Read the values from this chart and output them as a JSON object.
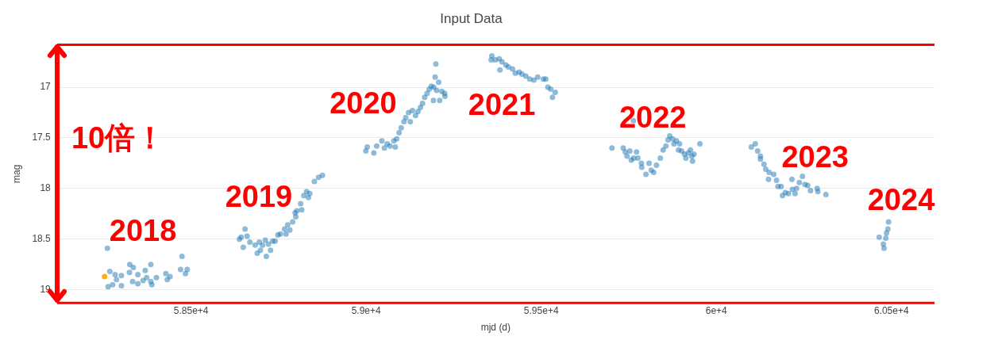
{
  "chart_data": {
    "type": "scatter",
    "title": "Input Data",
    "xlabel": "mjd (d)",
    "ylabel": "mag",
    "xlim": [
      58117,
      60623
    ],
    "xticks": [
      {
        "value": 58500,
        "label": "5.85e+4"
      },
      {
        "value": 59000,
        "label": "5.9e+4"
      },
      {
        "value": 59500,
        "label": "5.95e+4"
      },
      {
        "value": 60000,
        "label": "6e+4"
      },
      {
        "value": 60500,
        "label": "6.05e+4"
      }
    ],
    "ylim": [
      19.13,
      16.58
    ],
    "yticks": [
      17,
      17.5,
      18,
      18.5,
      19
    ],
    "grid": "y",
    "legend": false,
    "marker": "circle",
    "annotations": [
      "10倍！",
      "2018",
      "2019",
      "2020",
      "2021",
      "2022",
      "2023",
      "2024"
    ],
    "series": [
      {
        "color": "#1f77b4",
        "x": [
          58261,
          58268,
          58263,
          58276,
          58283,
          58287,
          58301,
          58301,
          58325,
          58335,
          58324,
          58333,
          58348,
          58348,
          58363,
          58369,
          58373,
          58385,
          58385,
          58388,
          58401,
          58428,
          58432,
          58440,
          58474,
          58470,
          58484,
          58489,
          58638,
          58643,
          58649,
          58654,
          58660,
          58668,
          58683,
          58689,
          58695,
          58698,
          58704,
          58712,
          58715,
          58721,
          58727,
          58733,
          58740,
          58748,
          58755,
          58767,
          58771,
          58776,
          58782,
          58790,
          58797,
          58799,
          58802,
          58813,
          58816,
          58822,
          58830,
          58835,
          58839,
          58852,
          58864,
          58875,
          58999,
          59003,
          59022,
          59030,
          59045,
          59052,
          59060,
          59068,
          59079,
          59083,
          59087,
          59094,
          59100,
          59108,
          59113,
          59121,
          59126,
          59132,
          59141,
          59148,
          59155,
          59161,
          59167,
          59174,
          59180,
          59186,
          59192,
          59193,
          59197,
          59199,
          59201,
          59207,
          59210,
          59216,
          59224,
          59225,
          59359,
          59357,
          59369,
          59380,
          59382,
          59388,
          59399,
          59406,
          59418,
          59426,
          59437,
          59445,
          59456,
          59467,
          59479,
          59490,
          59506,
          59513,
          59519,
          59527,
          59532,
          59540,
          59702,
          59734,
          59740,
          59745,
          59753,
          59757,
          59763,
          59764,
          59772,
          59776,
          59786,
          59787,
          59799,
          59808,
          59814,
          59821,
          59829,
          59840,
          59848,
          59856,
          59862,
          59867,
          59875,
          59879,
          59886,
          59895,
          59892,
          59901,
          59909,
          59913,
          59920,
          59926,
          59930,
          59936,
          59932,
          59953,
          60100,
          60111,
          60118,
          60126,
          60126,
          60136,
          60141,
          60151,
          60149,
          60164,
          60172,
          60176,
          60185,
          60189,
          60197,
          60206,
          60216,
          60217,
          60225,
          60229,
          60237,
          60246,
          60253,
          60261,
          60269,
          60288,
          60290,
          60313,
          60465,
          60477,
          60479,
          60484,
          60486,
          60490,
          60492
        ],
        "values": [
          18.59,
          18.82,
          18.97,
          18.95,
          18.85,
          18.9,
          18.96,
          18.86,
          18.75,
          18.78,
          18.83,
          18.92,
          18.94,
          18.85,
          18.91,
          18.81,
          18.88,
          18.75,
          18.92,
          18.95,
          18.88,
          18.84,
          18.9,
          18.87,
          18.67,
          18.8,
          18.84,
          18.8,
          18.5,
          18.48,
          18.58,
          18.4,
          18.47,
          18.53,
          18.56,
          18.64,
          18.53,
          18.61,
          18.56,
          18.51,
          18.67,
          18.55,
          18.61,
          18.52,
          18.52,
          18.46,
          18.45,
          18.4,
          18.45,
          18.36,
          18.41,
          18.33,
          18.24,
          18.28,
          18.22,
          18.15,
          18.21,
          18.07,
          18.03,
          18.09,
          18.05,
          17.93,
          17.89,
          17.87,
          17.63,
          17.59,
          17.65,
          17.58,
          17.53,
          17.6,
          17.56,
          17.58,
          17.53,
          17.59,
          17.51,
          17.45,
          17.4,
          17.34,
          17.3,
          17.25,
          17.34,
          17.23,
          17.28,
          17.24,
          17.2,
          17.16,
          17.1,
          17.06,
          17.02,
          16.99,
          17.13,
          17.0,
          16.9,
          16.77,
          17.03,
          16.95,
          17.13,
          17.04,
          17.06,
          17.09,
          16.69,
          16.73,
          16.73,
          16.72,
          16.83,
          16.75,
          16.78,
          16.8,
          16.82,
          16.86,
          16.85,
          16.87,
          16.89,
          16.92,
          16.93,
          16.9,
          16.92,
          16.92,
          17.0,
          17.02,
          17.1,
          17.05,
          17.6,
          17.6,
          17.64,
          17.68,
          17.63,
          17.72,
          17.33,
          17.7,
          17.64,
          17.7,
          17.75,
          17.79,
          17.86,
          17.75,
          17.82,
          17.84,
          17.77,
          17.7,
          17.62,
          17.58,
          17.52,
          17.48,
          17.51,
          17.56,
          17.53,
          17.56,
          17.62,
          17.63,
          17.66,
          17.7,
          17.65,
          17.62,
          17.68,
          17.66,
          17.73,
          17.56,
          17.59,
          17.56,
          17.63,
          17.68,
          17.71,
          17.76,
          17.81,
          17.84,
          17.91,
          17.86,
          17.92,
          17.98,
          17.98,
          18.07,
          18.04,
          18.05,
          17.91,
          18.01,
          18.05,
          18.0,
          17.94,
          17.88,
          17.96,
          17.97,
          18.02,
          18.0,
          18.03,
          18.06,
          18.48,
          18.55,
          18.59,
          18.49,
          18.44,
          18.4,
          18.33
        ]
      },
      {
        "color": "#ffa500",
        "x": [
          58253
        ],
        "values": [
          18.87
        ]
      }
    ]
  }
}
